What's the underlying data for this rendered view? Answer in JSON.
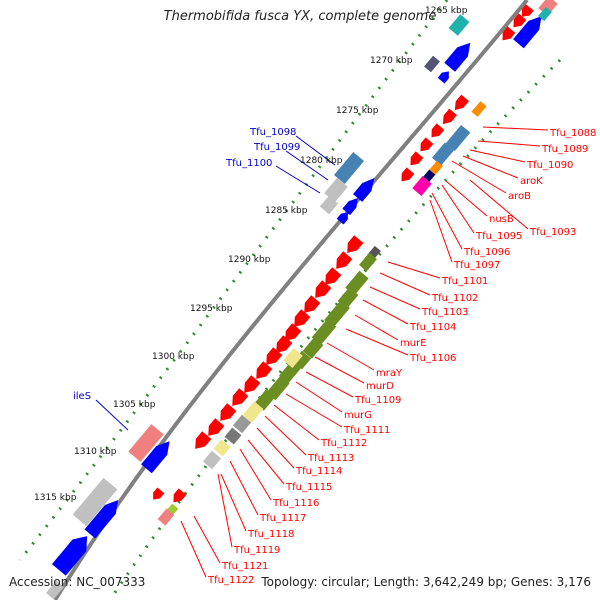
{
  "title": "Thermobifida fusca YX, complete genome",
  "accession": "Accession: NC_007333",
  "summary": "Topology: circular; Length: 3,642,249 bp; Genes: 3,176",
  "colors": {
    "backbone": "#808080",
    "tick": "#2e8b2e",
    "forward_gene": "#0000ff",
    "reverse_gene": "#ff0000",
    "label_right": "#ff0000",
    "label_left": "#0000cc",
    "olive_gene": "#6b8e23",
    "light_olive_gene": "#9acd32",
    "yellow_gene": "#f0e68c",
    "pink_gene": "#f08080",
    "gray_gene": "#c0c0c0",
    "steel_gene": "#4682b4",
    "cyan_gene": "#20b2aa",
    "magenta_gene": "#ff00aa",
    "orange_gene": "#ff8c00"
  },
  "scale_labels": [
    "1265 kbp",
    "1270 kbp",
    "1275 kbp",
    "1280 kbp",
    "1285 kbp",
    "1290 kbp",
    "1295 kbp",
    "1300 kbp",
    "1305 kbp",
    "1310 kbp",
    "1315 kbp"
  ],
  "right_gene_labels": [
    "Tfu_1088",
    "Tfu_1089",
    "Tfu_1090",
    "aroK",
    "aroB",
    "nusB",
    "Tfu_1093",
    "Tfu_1095",
    "Tfu_1096",
    "Tfu_1097",
    "Tfu_1101",
    "Tfu_1102",
    "Tfu_1103",
    "Tfu_1104",
    "murE",
    "Tfu_1106",
    "mraY",
    "murD",
    "Tfu_1109",
    "murG",
    "Tfu_1111",
    "Tfu_1112",
    "Tfu_1113",
    "Tfu_1114",
    "Tfu_1115",
    "Tfu_1116",
    "Tfu_1117",
    "Tfu_1118",
    "Tfu_1119",
    "Tfu_1121",
    "Tfu_1122"
  ],
  "left_gene_labels": [
    "Tfu_1098",
    "Tfu_1099",
    "Tfu_1100",
    "ileS"
  ]
}
